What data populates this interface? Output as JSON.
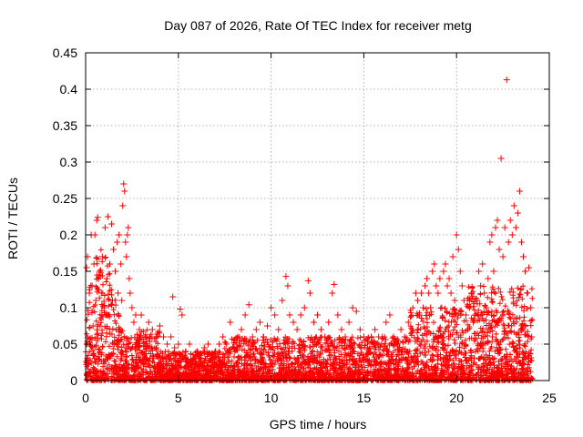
{
  "chart_data": {
    "type": "scatter",
    "title": "Day 087 of 2026, Rate Of TEC Index for receiver metg",
    "xlabel": "GPS time / hours",
    "ylabel": "ROTI / TECUs",
    "xlim": [
      0,
      25
    ],
    "ylim": [
      0,
      0.45
    ],
    "xticks": [
      0,
      5,
      10,
      15,
      20,
      25
    ],
    "yticks": [
      0,
      0.05,
      0.1,
      0.15,
      0.2,
      0.25,
      0.3,
      0.35,
      0.4,
      0.45
    ],
    "grid": true,
    "marker": "+",
    "marker_color": "#ff0000",
    "points": [
      [
        0.05,
        0.155
      ],
      [
        0.1,
        0.17
      ],
      [
        0.2,
        0.12
      ],
      [
        0.3,
        0.2
      ],
      [
        0.35,
        0.13
      ],
      [
        0.45,
        0.16
      ],
      [
        0.5,
        0.2
      ],
      [
        0.55,
        0.11
      ],
      [
        0.4,
        0.075
      ],
      [
        0.6,
        0.22
      ],
      [
        0.65,
        0.224
      ],
      [
        0.75,
        0.15
      ],
      [
        0.85,
        0.12
      ],
      [
        0.9,
        0.17
      ],
      [
        1.0,
        0.1
      ],
      [
        1.05,
        0.21
      ],
      [
        1.1,
        0.09
      ],
      [
        1.15,
        0.14
      ],
      [
        1.2,
        0.225
      ],
      [
        1.3,
        0.16
      ],
      [
        1.4,
        0.215
      ],
      [
        1.45,
        0.11
      ],
      [
        1.5,
        0.18
      ],
      [
        1.55,
        0.05
      ],
      [
        1.6,
        0.15
      ],
      [
        1.7,
        0.19
      ],
      [
        1.75,
        0.12
      ],
      [
        1.8,
        0.2
      ],
      [
        1.9,
        0.16
      ],
      [
        1.95,
        0.11
      ],
      [
        2.0,
        0.24
      ],
      [
        2.05,
        0.27
      ],
      [
        2.1,
        0.26
      ],
      [
        2.15,
        0.19
      ],
      [
        2.2,
        0.17
      ],
      [
        2.25,
        0.2
      ],
      [
        2.3,
        0.21
      ],
      [
        2.35,
        0.14
      ],
      [
        2.4,
        0.12
      ],
      [
        2.5,
        0.1
      ],
      [
        2.6,
        0.08
      ],
      [
        2.7,
        0.09
      ],
      [
        2.9,
        0.07
      ],
      [
        3.0,
        0.09
      ],
      [
        3.2,
        0.06
      ],
      [
        3.4,
        0.08
      ],
      [
        3.6,
        0.07
      ],
      [
        3.8,
        0.06
      ],
      [
        4.0,
        0.075
      ],
      [
        4.2,
        0.06
      ],
      [
        4.4,
        0.05
      ],
      [
        4.6,
        0.06
      ],
      [
        4.7,
        0.115
      ],
      [
        4.8,
        0.045
      ],
      [
        5.0,
        0.05
      ],
      [
        5.1,
        0.098
      ],
      [
        5.2,
        0.09
      ],
      [
        5.4,
        0.04
      ],
      [
        5.6,
        0.05
      ],
      [
        5.8,
        0.03
      ],
      [
        6.0,
        0.04
      ],
      [
        6.2,
        0.03
      ],
      [
        6.4,
        0.045
      ],
      [
        6.6,
        0.05
      ],
      [
        6.8,
        0.035
      ],
      [
        7.0,
        0.04
      ],
      [
        7.2,
        0.05
      ],
      [
        7.4,
        0.06
      ],
      [
        7.6,
        0.05
      ],
      [
        7.8,
        0.08
      ],
      [
        8.0,
        0.045
      ],
      [
        8.2,
        0.06
      ],
      [
        8.4,
        0.07
      ],
      [
        8.6,
        0.09
      ],
      [
        8.8,
        0.104
      ],
      [
        9.0,
        0.06
      ],
      [
        9.2,
        0.07
      ],
      [
        9.4,
        0.08
      ],
      [
        9.6,
        0.06
      ],
      [
        9.8,
        0.075
      ],
      [
        10.0,
        0.1
      ],
      [
        10.2,
        0.09
      ],
      [
        10.4,
        0.07
      ],
      [
        10.6,
        0.11
      ],
      [
        10.8,
        0.143
      ],
      [
        10.9,
        0.13
      ],
      [
        11.0,
        0.09
      ],
      [
        11.2,
        0.08
      ],
      [
        11.4,
        0.07
      ],
      [
        11.6,
        0.09
      ],
      [
        11.8,
        0.1
      ],
      [
        12.0,
        0.137
      ],
      [
        12.1,
        0.12
      ],
      [
        12.3,
        0.08
      ],
      [
        12.5,
        0.09
      ],
      [
        12.7,
        0.07
      ],
      [
        12.9,
        0.06
      ],
      [
        13.1,
        0.08
      ],
      [
        13.3,
        0.12
      ],
      [
        13.4,
        0.132
      ],
      [
        13.6,
        0.09
      ],
      [
        13.8,
        0.07
      ],
      [
        14.0,
        0.06
      ],
      [
        14.2,
        0.08
      ],
      [
        14.4,
        0.1
      ],
      [
        14.6,
        0.095
      ],
      [
        14.8,
        0.07
      ],
      [
        15.0,
        0.06
      ],
      [
        15.2,
        0.05
      ],
      [
        15.4,
        0.06
      ],
      [
        15.6,
        0.07
      ],
      [
        15.8,
        0.06
      ],
      [
        16.0,
        0.06
      ],
      [
        16.2,
        0.08
      ],
      [
        16.4,
        0.09
      ],
      [
        16.6,
        0.06
      ],
      [
        16.8,
        0.05
      ],
      [
        17.0,
        0.07
      ],
      [
        17.2,
        0.06
      ],
      [
        17.4,
        0.08
      ],
      [
        17.6,
        0.07
      ],
      [
        17.8,
        0.12
      ],
      [
        17.9,
        0.11
      ],
      [
        18.0,
        0.09
      ],
      [
        18.1,
        0.12
      ],
      [
        18.2,
        0.1
      ],
      [
        18.3,
        0.13
      ],
      [
        18.4,
        0.14
      ],
      [
        18.5,
        0.12
      ],
      [
        18.6,
        0.1
      ],
      [
        18.7,
        0.15
      ],
      [
        18.8,
        0.16
      ],
      [
        18.9,
        0.13
      ],
      [
        19.0,
        0.12
      ],
      [
        19.1,
        0.14
      ],
      [
        19.2,
        0.1
      ],
      [
        19.3,
        0.15
      ],
      [
        19.4,
        0.16
      ],
      [
        19.5,
        0.13
      ],
      [
        19.6,
        0.14
      ],
      [
        19.7,
        0.12
      ],
      [
        19.8,
        0.17
      ],
      [
        19.9,
        0.11
      ],
      [
        20.0,
        0.2
      ],
      [
        20.1,
        0.18
      ],
      [
        20.2,
        0.15
      ],
      [
        20.3,
        0.13
      ],
      [
        20.4,
        0.11
      ],
      [
        20.5,
        0.09
      ],
      [
        20.6,
        0.07
      ],
      [
        20.7,
        0.1
      ],
      [
        20.8,
        0.12
      ],
      [
        20.9,
        0.08
      ],
      [
        21.0,
        0.09
      ],
      [
        21.1,
        0.11
      ],
      [
        21.2,
        0.15
      ],
      [
        21.3,
        0.13
      ],
      [
        21.4,
        0.16
      ],
      [
        21.5,
        0.12
      ],
      [
        21.6,
        0.1
      ],
      [
        21.7,
        0.14
      ],
      [
        21.8,
        0.19
      ],
      [
        21.9,
        0.2
      ],
      [
        22.0,
        0.15
      ],
      [
        22.1,
        0.21
      ],
      [
        22.2,
        0.22
      ],
      [
        22.3,
        0.18
      ],
      [
        22.4,
        0.305
      ],
      [
        22.5,
        0.17
      ],
      [
        22.6,
        0.21
      ],
      [
        22.7,
        0.413
      ],
      [
        22.8,
        0.19
      ],
      [
        22.9,
        0.22
      ],
      [
        23.0,
        0.2
      ],
      [
        23.1,
        0.24
      ],
      [
        23.2,
        0.21
      ],
      [
        23.3,
        0.23
      ],
      [
        23.4,
        0.26
      ],
      [
        23.5,
        0.19
      ],
      [
        23.6,
        0.17
      ],
      [
        23.7,
        0.15
      ],
      [
        23.8,
        0.12
      ],
      [
        23.9,
        0.155
      ],
      [
        24.0,
        0.1
      ],
      [
        24.05,
        0.06
      ]
    ]
  }
}
